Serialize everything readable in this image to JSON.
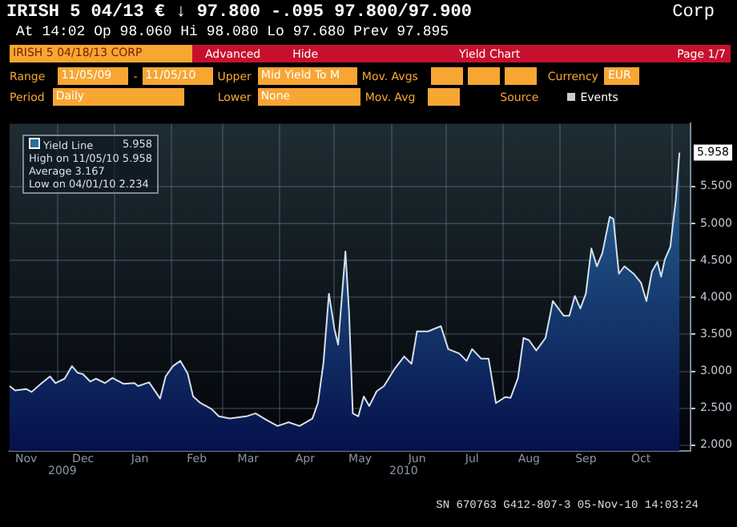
{
  "chart_data": {
    "type": "area",
    "title": "IRISH 5 04/13 € ↓ 97.800 -.095 97.800/97.900",
    "subtitle": "At 14:02 Op 98.060 Hi 98.080 Lo 97.680 Prev 97.895",
    "x": [
      "2009-11-05",
      "2009-11-08",
      "2009-11-14",
      "2009-11-17",
      "2009-11-22",
      "2009-11-27",
      "2009-11-30",
      "2009-12-05",
      "2009-12-09",
      "2009-12-12",
      "2009-12-15",
      "2009-12-19",
      "2009-12-22",
      "2009-12-27",
      "2009-12-31",
      "2010-01-06",
      "2010-01-12",
      "2010-01-14",
      "2010-01-20",
      "2010-01-26",
      "2010-01-29",
      "2010-02-02",
      "2010-02-06",
      "2010-02-10",
      "2010-02-13",
      "2010-02-17",
      "2010-02-23",
      "2010-02-27",
      "2010-03-05",
      "2010-03-14",
      "2010-03-19",
      "2010-03-25",
      "2010-03-31",
      "2010-04-06",
      "2010-04-12",
      "2010-04-19",
      "2010-04-22",
      "2010-04-25",
      "2010-04-28",
      "2010-05-01",
      "2010-05-03",
      "2010-05-07",
      "2010-05-09",
      "2010-05-11",
      "2010-05-14",
      "2010-05-17",
      "2010-05-20",
      "2010-05-24",
      "2010-05-28",
      "2010-06-03",
      "2010-06-08",
      "2010-06-12",
      "2010-06-15",
      "2010-06-21",
      "2010-06-28",
      "2010-07-02",
      "2010-07-08",
      "2010-07-12",
      "2010-07-15",
      "2010-07-20",
      "2010-07-24",
      "2010-07-28",
      "2010-08-02",
      "2010-08-05",
      "2010-08-09",
      "2010-08-12",
      "2010-08-15",
      "2010-08-19",
      "2010-08-24",
      "2010-08-27",
      "2010-08-28",
      "2010-09-03",
      "2010-09-06",
      "2010-09-09",
      "2010-09-12",
      "2010-09-15",
      "2010-09-18",
      "2010-09-21",
      "2010-09-24",
      "2010-09-28",
      "2010-09-30",
      "2010-10-03",
      "2010-10-06",
      "2010-10-11",
      "2010-10-15",
      "2010-10-18",
      "2010-10-21",
      "2010-10-24",
      "2010-10-26",
      "2010-10-28",
      "2010-10-31",
      "2010-11-03",
      "2010-11-05"
    ],
    "series": [
      {
        "name": "Yield Line",
        "color": "#2a6f9e",
        "values": [
          2.8,
          2.74,
          2.76,
          2.72,
          2.83,
          2.93,
          2.84,
          2.9,
          3.07,
          2.98,
          2.96,
          2.86,
          2.9,
          2.84,
          2.91,
          2.83,
          2.84,
          2.8,
          2.85,
          2.63,
          2.93,
          3.07,
          3.14,
          2.97,
          2.66,
          2.57,
          2.49,
          2.39,
          2.36,
          2.39,
          2.43,
          2.34,
          2.26,
          2.31,
          2.26,
          2.36,
          2.57,
          3.11,
          4.05,
          3.57,
          3.36,
          4.62,
          3.78,
          2.43,
          2.39,
          2.66,
          2.53,
          2.73,
          2.8,
          3.04,
          3.2,
          3.1,
          3.54,
          3.54,
          3.61,
          3.3,
          3.24,
          3.14,
          3.3,
          3.17,
          3.17,
          2.57,
          2.65,
          2.64,
          2.91,
          3.45,
          3.42,
          3.28,
          3.45,
          3.82,
          3.95,
          3.75,
          3.75,
          4.02,
          3.85,
          4.05,
          4.66,
          4.42,
          4.6,
          5.09,
          5.06,
          4.32,
          4.42,
          4.32,
          4.2,
          3.95,
          4.35,
          4.48,
          4.28,
          4.51,
          4.68,
          5.32,
          5.958
        ],
        "value_labels": [
          null,
          null,
          null,
          null,
          null,
          null,
          null,
          null,
          null,
          null,
          null,
          null,
          null,
          null,
          null,
          null,
          null,
          null,
          null,
          null,
          null,
          null,
          null,
          null,
          null,
          null,
          null,
          null,
          null,
          null,
          null,
          null,
          null,
          null,
          null,
          null,
          null,
          null,
          null,
          null,
          null,
          null,
          null,
          null,
          null,
          null,
          null,
          null,
          null,
          null,
          null,
          null,
          null,
          null,
          null,
          null,
          null,
          null,
          null,
          null,
          null,
          null,
          null,
          null,
          null,
          null,
          null,
          null,
          null,
          null,
          null,
          null,
          null,
          null,
          null,
          null,
          null,
          null,
          null,
          null,
          null,
          null,
          null,
          null,
          null,
          null,
          null,
          null,
          null,
          null,
          null,
          null,
          "5.958"
        ]
      }
    ],
    "xlim": [
      "2009-11-05",
      "2010-11-11"
    ],
    "xticks": [
      {
        "value": "2009-11-14",
        "label": "Nov"
      },
      {
        "value": "2009-12-01",
        "label": null
      },
      {
        "value": "2009-12-15",
        "label": "Dec"
      },
      {
        "value": "2010-01-01",
        "label": null
      },
      {
        "value": "2010-01-15",
        "label": "Jan"
      },
      {
        "value": "2010-02-01",
        "label": null
      },
      {
        "value": "2010-02-15",
        "label": "Feb"
      },
      {
        "value": "2010-03-01",
        "label": null
      },
      {
        "value": "2010-03-15",
        "label": "Mar"
      },
      {
        "value": "2010-04-01",
        "label": null
      },
      {
        "value": "2010-04-15",
        "label": "Apr"
      },
      {
        "value": "2010-05-01",
        "label": null
      },
      {
        "value": "2010-05-15",
        "label": "May"
      },
      {
        "value": "2010-06-01",
        "label": null
      },
      {
        "value": "2010-06-15",
        "label": "Jun"
      },
      {
        "value": "2010-07-01",
        "label": null
      },
      {
        "value": "2010-07-15",
        "label": "Jul"
      },
      {
        "value": "2010-08-01",
        "label": null
      },
      {
        "value": "2010-08-15",
        "label": "Aug"
      },
      {
        "value": "2010-09-01",
        "label": null
      },
      {
        "value": "2010-09-15",
        "label": "Sep"
      },
      {
        "value": "2010-10-01",
        "label": null
      },
      {
        "value": "2010-10-15",
        "label": "Oct"
      },
      {
        "value": "2010-11-01",
        "label": null
      }
    ],
    "ylim": [
      1.92,
      6.35
    ],
    "yticks": [
      {
        "value": 2,
        "label": "2.000"
      },
      {
        "value": 2.5,
        "label": "2.500"
      },
      {
        "value": 3,
        "label": "3.000"
      },
      {
        "value": 3.5,
        "label": "3.500"
      },
      {
        "value": 4,
        "label": "4.000"
      },
      {
        "value": 4.5,
        "label": "4.500"
      },
      {
        "value": 5,
        "label": "5.000"
      },
      {
        "value": 5.5,
        "label": "5.500"
      }
    ],
    "grid": true,
    "legend": "top left",
    "annotations": [
      "Corp",
      "IRISH 5 04/18/13 CORP",
      "Advanced",
      "Hide",
      "Yield Chart",
      "Page 1/7",
      "Range",
      "11/05/09",
      "-",
      "11/05/10",
      "Upper",
      "Mid Yield To M",
      "Mov. Avgs",
      "Currency",
      "EUR",
      "Period",
      "Daily",
      "Lower",
      "None",
      "Mov. Avg",
      "Source",
      "Events",
      "High on 11/05/10 5.958",
      "Average 3.167",
      "Low on 04/01/10 2.234",
      "2009",
      "2010",
      "SN 670763 G412-807-3 05-Nov-10 14:03:24"
    ]
  }
}
